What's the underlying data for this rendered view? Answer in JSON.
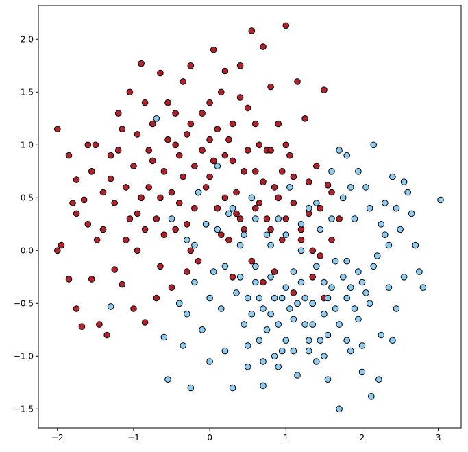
{
  "chart_data": {
    "type": "scatter",
    "title": "",
    "xlabel": "",
    "ylabel": "",
    "xlim": [
      -2.25,
      3.3
    ],
    "ylim": [
      -1.68,
      2.32
    ],
    "xticks": [
      -2,
      -1,
      0,
      1,
      2,
      3
    ],
    "yticks": [
      -1.5,
      -1.0,
      -0.5,
      0.0,
      0.5,
      1.0,
      1.5,
      2.0
    ],
    "xtick_labels": [
      "−2",
      "−1",
      "0",
      "1",
      "2",
      "3"
    ],
    "ytick_labels": [
      "−1.5",
      "−1.0",
      "−0.5",
      "0.0",
      "0.5",
      "1.0",
      "1.5",
      "2.0"
    ],
    "grid": false,
    "legend": "none",
    "colors": {
      "class_0": "#b2222b",
      "class_1": "#8ecdf3",
      "edge": "#000000"
    },
    "series": [
      {
        "color": "#b2222b",
        "points": [
          [
            -2.0,
            1.15
          ],
          [
            -2.0,
            0.0
          ],
          [
            -1.95,
            0.05
          ],
          [
            -1.85,
            0.9
          ],
          [
            -1.85,
            -0.27
          ],
          [
            -1.8,
            0.45
          ],
          [
            -1.75,
            0.35
          ],
          [
            -1.75,
            0.67
          ],
          [
            -1.75,
            -0.55
          ],
          [
            -1.68,
            -0.72
          ],
          [
            -1.65,
            0.48
          ],
          [
            -1.6,
            0.25
          ],
          [
            -1.55,
            0.75
          ],
          [
            -1.55,
            -0.27
          ],
          [
            -1.5,
            1.0
          ],
          [
            -1.48,
            0.1
          ],
          [
            -1.45,
            -0.7
          ],
          [
            -1.4,
            0.55
          ],
          [
            -1.35,
            -0.8
          ],
          [
            -1.3,
            0.9
          ],
          [
            -1.25,
            -0.18
          ],
          [
            -1.2,
            1.3
          ],
          [
            -1.15,
            -0.32
          ],
          [
            -1.1,
            0.1
          ],
          [
            -1.05,
            1.5
          ],
          [
            -1.0,
            -0.55
          ],
          [
            -0.95,
            0.35
          ],
          [
            -0.9,
            1.77
          ],
          [
            -0.85,
            -0.68
          ],
          [
            -0.8,
            0.6
          ],
          [
            -0.75,
            1.2
          ],
          [
            -0.7,
            -0.45
          ],
          [
            -0.65,
            1.68
          ],
          [
            -0.6,
            0.15
          ],
          [
            -0.55,
            1.4
          ],
          [
            -0.5,
            -0.35
          ],
          [
            -0.45,
            1.0
          ],
          [
            -0.4,
            0.45
          ],
          [
            -0.35,
            1.6
          ],
          [
            -0.3,
            0.25
          ],
          [
            -0.25,
            1.75
          ],
          [
            -0.2,
            0.8
          ],
          [
            -0.15,
            -0.1
          ],
          [
            -0.1,
            1.3
          ],
          [
            -0.05,
            0.6
          ],
          [
            0.0,
            1.05
          ],
          [
            0.05,
            1.9
          ],
          [
            0.1,
            0.4
          ],
          [
            0.15,
            1.5
          ],
          [
            0.2,
            0.9
          ],
          [
            0.25,
            0.1
          ],
          [
            0.3,
            1.2
          ],
          [
            0.35,
            0.55
          ],
          [
            0.4,
            1.75
          ],
          [
            0.45,
            0.2
          ],
          [
            0.5,
            1.35
          ],
          [
            0.55,
            2.08
          ],
          [
            0.6,
            0.75
          ],
          [
            0.65,
            1.0
          ],
          [
            0.7,
            1.93
          ],
          [
            0.75,
            0.3
          ],
          [
            0.8,
            1.55
          ],
          [
            0.85,
            0.6
          ],
          [
            0.9,
            1.2
          ],
          [
            0.95,
            0.1
          ],
          [
            1.0,
            2.13
          ],
          [
            1.05,
            0.9
          ],
          [
            1.1,
            0.45
          ],
          [
            1.15,
            1.6
          ],
          [
            1.2,
            0.2
          ],
          [
            1.25,
            1.25
          ],
          [
            1.3,
            0.65
          ],
          [
            1.35,
            0.0
          ],
          [
            1.4,
            0.8
          ],
          [
            1.45,
            0.4
          ],
          [
            1.5,
            1.52
          ],
          [
            1.55,
            0.62
          ],
          [
            1.6,
            0.1
          ],
          [
            1.7,
            0.3
          ],
          [
            -1.3,
            0.68
          ],
          [
            -1.2,
            0.95
          ],
          [
            -1.0,
            0.8
          ],
          [
            -0.9,
            0.5
          ],
          [
            -0.8,
            0.95
          ],
          [
            -0.7,
            0.3
          ],
          [
            -0.6,
            0.75
          ],
          [
            -0.5,
            0.55
          ],
          [
            -0.4,
            0.9
          ],
          [
            -0.3,
            1.1
          ],
          [
            -0.2,
            0.4
          ],
          [
            -0.1,
            0.95
          ],
          [
            0.0,
            0.7
          ],
          [
            0.1,
            1.15
          ],
          [
            0.2,
            0.5
          ],
          [
            0.3,
            0.85
          ],
          [
            0.4,
            0.3
          ],
          [
            0.5,
            0.95
          ],
          [
            0.6,
            0.4
          ],
          [
            0.7,
            0.65
          ],
          [
            0.8,
            0.2
          ],
          [
            0.9,
            0.5
          ],
          [
            1.0,
            0.3
          ],
          [
            1.1,
            0.7
          ],
          [
            1.2,
            0.1
          ],
          [
            -1.1,
            0.6
          ],
          [
            -0.95,
            1.1
          ],
          [
            -0.85,
            0.2
          ],
          [
            -0.75,
            0.85
          ],
          [
            -0.65,
            0.5
          ],
          [
            -0.55,
            1.05
          ],
          [
            -0.45,
            0.2
          ],
          [
            -0.35,
            0.7
          ],
          [
            -0.25,
            1.2
          ],
          [
            -0.15,
            0.55
          ],
          [
            -0.05,
            0.25
          ],
          [
            0.05,
            0.85
          ],
          [
            0.15,
            0.15
          ],
          [
            0.25,
            1.05
          ],
          [
            0.35,
            0.35
          ],
          [
            0.45,
            0.75
          ],
          [
            0.55,
            -0.1
          ],
          [
            0.65,
            0.45
          ],
          [
            0.75,
            0.95
          ],
          [
            0.85,
            -0.2
          ],
          [
            0.95,
            0.75
          ],
          [
            1.3,
            0.35
          ],
          [
            1.45,
            -0.05
          ],
          [
            1.6,
            0.55
          ],
          [
            -1.6,
            1.0
          ],
          [
            -1.4,
            0.2
          ],
          [
            -1.25,
            0.45
          ],
          [
            -1.15,
            1.15
          ],
          [
            -1.05,
            0.3
          ],
          [
            -0.95,
            0.0
          ],
          [
            -0.85,
            1.4
          ],
          [
            -0.65,
            -0.15
          ],
          [
            -0.45,
            1.3
          ],
          [
            -0.25,
            0.0
          ],
          [
            0.0,
            1.4
          ],
          [
            0.2,
            1.7
          ],
          [
            0.4,
            1.45
          ],
          [
            0.6,
            1.2
          ],
          [
            0.8,
            0.95
          ],
          [
            1.0,
            1.0
          ],
          [
            -0.3,
            -0.2
          ],
          [
            0.3,
            -0.25
          ],
          [
            0.7,
            -0.3
          ],
          [
            1.1,
            -0.4
          ],
          [
            1.35,
            -0.25
          ],
          [
            1.5,
            -0.45
          ]
        ]
      },
      {
        "color": "#8ecdf3",
        "points": [
          [
            -1.3,
            -0.53
          ],
          [
            -0.7,
            1.25
          ],
          [
            -0.6,
            -0.82
          ],
          [
            -0.55,
            -1.22
          ],
          [
            -0.5,
            0.3
          ],
          [
            -0.4,
            -0.5
          ],
          [
            -0.35,
            -0.9
          ],
          [
            -0.3,
            0.1
          ],
          [
            -0.25,
            -1.3
          ],
          [
            -0.2,
            -0.3
          ],
          [
            -0.15,
            0.55
          ],
          [
            -0.1,
            -0.75
          ],
          [
            -0.05,
            0.25
          ],
          [
            0.0,
            -1.05
          ],
          [
            0.05,
            -0.2
          ],
          [
            0.1,
            0.8
          ],
          [
            0.15,
            -0.55
          ],
          [
            0.2,
            -0.95
          ],
          [
            0.25,
            0.35
          ],
          [
            0.3,
            -1.3
          ],
          [
            0.35,
            -0.4
          ],
          [
            0.4,
            0.05
          ],
          [
            0.45,
            -0.7
          ],
          [
            0.5,
            -1.1
          ],
          [
            0.55,
            0.5
          ],
          [
            0.6,
            -0.3
          ],
          [
            0.65,
            -0.85
          ],
          [
            0.7,
            -1.28
          ],
          [
            0.75,
            0.15
          ],
          [
            0.8,
            -0.6
          ],
          [
            0.85,
            -1.0
          ],
          [
            0.9,
            0.3
          ],
          [
            0.95,
            -0.45
          ],
          [
            1.0,
            -0.85
          ],
          [
            1.05,
            0.6
          ],
          [
            1.1,
            -0.2
          ],
          [
            1.15,
            -1.18
          ],
          [
            1.2,
            0.0
          ],
          [
            1.25,
            -0.7
          ],
          [
            1.3,
            0.4
          ],
          [
            1.35,
            -0.5
          ],
          [
            1.4,
            -1.05
          ],
          [
            1.45,
            0.2
          ],
          [
            1.5,
            -0.3
          ],
          [
            1.55,
            -0.8
          ],
          [
            1.6,
            0.75
          ],
          [
            1.65,
            -0.1
          ],
          [
            1.7,
            -1.5
          ],
          [
            1.75,
            0.5
          ],
          [
            1.8,
            -0.45
          ],
          [
            1.85,
            -0.95
          ],
          [
            1.9,
            0.3
          ],
          [
            1.95,
            -0.2
          ],
          [
            2.0,
            -1.15
          ],
          [
            2.05,
            0.6
          ],
          [
            2.1,
            -0.5
          ],
          [
            2.15,
            1.0
          ],
          [
            2.2,
            -0.05
          ],
          [
            2.25,
            -0.8
          ],
          [
            2.3,
            0.45
          ],
          [
            2.35,
            -0.35
          ],
          [
            2.4,
            0.7
          ],
          [
            2.45,
            -0.55
          ],
          [
            2.5,
            0.2
          ],
          [
            2.55,
            -0.25
          ],
          [
            2.6,
            0.55
          ],
          [
            2.65,
            0.35
          ],
          [
            2.7,
            0.05
          ],
          [
            2.75,
            -0.2
          ],
          [
            2.8,
            -0.35
          ],
          [
            3.03,
            0.48
          ],
          [
            2.12,
            -1.38
          ],
          [
            2.22,
            -1.22
          ],
          [
            1.55,
            -1.22
          ],
          [
            0.5,
            -0.45
          ],
          [
            0.6,
            -0.15
          ],
          [
            0.7,
            -0.55
          ],
          [
            0.8,
            -0.25
          ],
          [
            0.9,
            -0.7
          ],
          [
            1.0,
            -0.35
          ],
          [
            1.1,
            -0.65
          ],
          [
            1.2,
            -0.3
          ],
          [
            1.3,
            -0.85
          ],
          [
            1.4,
            -0.15
          ],
          [
            1.5,
            -0.6
          ],
          [
            1.6,
            -0.35
          ],
          [
            1.7,
            -0.7
          ],
          [
            1.8,
            -0.1
          ],
          [
            1.9,
            -0.55
          ],
          [
            2.0,
            -0.3
          ],
          [
            0.55,
            -0.6
          ],
          [
            0.75,
            -0.75
          ],
          [
            0.95,
            -0.95
          ],
          [
            1.15,
            -0.5
          ],
          [
            1.35,
            -0.7
          ],
          [
            1.55,
            -0.45
          ],
          [
            1.75,
            -0.25
          ],
          [
            1.95,
            -0.65
          ],
          [
            2.15,
            -0.15
          ],
          [
            2.35,
            0.05
          ],
          [
            0.4,
            -0.25
          ],
          [
            0.65,
            -0.45
          ],
          [
            0.85,
            -0.45
          ],
          [
            1.05,
            -0.55
          ],
          [
            1.25,
            -0.45
          ],
          [
            1.45,
            -0.85
          ],
          [
            1.65,
            -0.55
          ],
          [
            1.85,
            -0.35
          ],
          [
            2.05,
            -0.4
          ],
          [
            2.25,
            0.25
          ],
          [
            -0.3,
            -0.6
          ],
          [
            -0.2,
            0.05
          ],
          [
            0.0,
            -0.45
          ],
          [
            0.1,
            0.2
          ],
          [
            0.2,
            -0.15
          ],
          [
            0.3,
            0.4
          ],
          [
            0.45,
            0.15
          ],
          [
            0.6,
            0.3
          ],
          [
            0.8,
            0.05
          ],
          [
            1.0,
            0.15
          ],
          [
            1.2,
            0.25
          ],
          [
            1.4,
            0.45
          ],
          [
            1.6,
            0.3
          ],
          [
            1.8,
            0.9
          ],
          [
            1.95,
            0.75
          ],
          [
            2.1,
            0.4
          ],
          [
            2.3,
            0.15
          ],
          [
            2.45,
            0.4
          ],
          [
            2.55,
            0.65
          ],
          [
            1.7,
            0.95
          ],
          [
            1.85,
            0.6
          ],
          [
            0.5,
            -0.9
          ],
          [
            0.7,
            -1.05
          ],
          [
            0.9,
            -1.1
          ],
          [
            1.1,
            -0.95
          ],
          [
            1.3,
            -0.95
          ],
          [
            1.5,
            -1.0
          ],
          [
            1.8,
            -0.85
          ],
          [
            2.0,
            -0.9
          ],
          [
            2.4,
            -0.85
          ]
        ]
      }
    ]
  }
}
